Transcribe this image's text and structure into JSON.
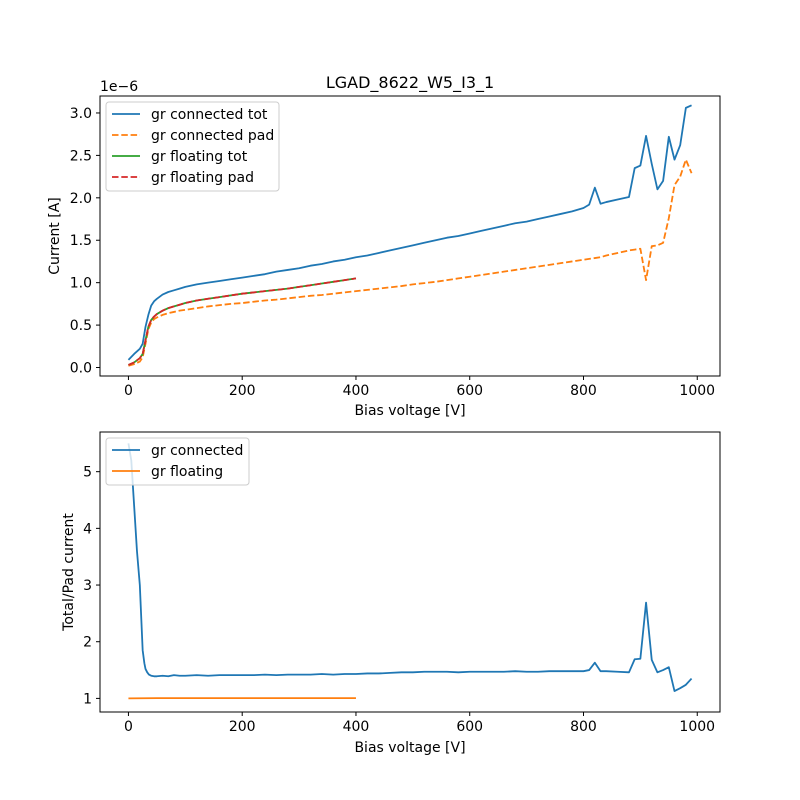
{
  "chart_data": [
    {
      "type": "line",
      "title": "LGAD_8622_W5_I3_1",
      "xlabel": "Bias voltage [V]",
      "ylabel": "Current [A]",
      "y_offset_label": "1e−6",
      "xlim": [
        -50,
        1040
      ],
      "ylim": [
        -1e-07,
        3.2e-06
      ],
      "x_ticks": [
        0,
        200,
        400,
        600,
        800,
        1000
      ],
      "x_tick_labels": [
        "0",
        "200",
        "400",
        "600",
        "800",
        "1000"
      ],
      "y_ticks": [
        0,
        5e-07,
        1e-06,
        1.5e-06,
        2e-06,
        2.5e-06,
        3e-06
      ],
      "y_tick_labels": [
        "0.0",
        "0.5",
        "1.0",
        "1.5",
        "2.0",
        "2.5",
        "3.0"
      ],
      "grid": false,
      "legend_position": "top-left",
      "series": [
        {
          "name": "gr connected tot",
          "color": "#1f77b4",
          "dash": "solid",
          "x": [
            0,
            10,
            20,
            25,
            30,
            35,
            40,
            45,
            50,
            60,
            70,
            80,
            90,
            100,
            120,
            140,
            160,
            180,
            200,
            220,
            240,
            260,
            280,
            300,
            320,
            340,
            360,
            380,
            400,
            420,
            440,
            460,
            480,
            500,
            520,
            540,
            560,
            580,
            600,
            620,
            640,
            660,
            680,
            700,
            720,
            740,
            760,
            780,
            800,
            810,
            820,
            830,
            840,
            860,
            880,
            890,
            900,
            910,
            920,
            930,
            940,
            950,
            960,
            970,
            980,
            990
          ],
          "y": [
            9e-08,
            1.6e-07,
            2.2e-07,
            2.8e-07,
            4.8e-07,
            6.2e-07,
            7.3e-07,
            7.8e-07,
            8.1e-07,
            8.6e-07,
            8.9e-07,
            9.1e-07,
            9.3e-07,
            9.5e-07,
            9.8e-07,
            1e-06,
            1.02e-06,
            1.04e-06,
            1.06e-06,
            1.08e-06,
            1.1e-06,
            1.13e-06,
            1.15e-06,
            1.17e-06,
            1.2e-06,
            1.22e-06,
            1.25e-06,
            1.27e-06,
            1.3e-06,
            1.32e-06,
            1.35e-06,
            1.38e-06,
            1.41e-06,
            1.44e-06,
            1.47e-06,
            1.5e-06,
            1.53e-06,
            1.55e-06,
            1.58e-06,
            1.61e-06,
            1.64e-06,
            1.67e-06,
            1.7e-06,
            1.72e-06,
            1.75e-06,
            1.78e-06,
            1.81e-06,
            1.84e-06,
            1.88e-06,
            1.92e-06,
            2.12e-06,
            1.93e-06,
            1.95e-06,
            1.98e-06,
            2.01e-06,
            2.35e-06,
            2.38e-06,
            2.73e-06,
            2.4e-06,
            2.1e-06,
            2.2e-06,
            2.72e-06,
            2.45e-06,
            2.62e-06,
            3.06e-06,
            3.09e-06
          ]
        },
        {
          "name": "gr connected pad",
          "color": "#ff7f0e",
          "dash": "dashed",
          "x": [
            0,
            10,
            20,
            25,
            30,
            35,
            40,
            45,
            50,
            60,
            70,
            80,
            90,
            100,
            120,
            140,
            160,
            180,
            200,
            220,
            240,
            260,
            280,
            300,
            320,
            340,
            360,
            380,
            400,
            420,
            440,
            460,
            480,
            500,
            520,
            540,
            560,
            580,
            600,
            620,
            640,
            660,
            680,
            700,
            720,
            740,
            760,
            780,
            800,
            810,
            820,
            830,
            840,
            860,
            880,
            890,
            900,
            910,
            920,
            930,
            940,
            950,
            960,
            970,
            980,
            990
          ],
          "y": [
            2e-08,
            4e-08,
            7e-08,
            1.2e-07,
            2.8e-07,
            4.5e-07,
            5.3e-07,
            5.7e-07,
            5.9e-07,
            6.2e-07,
            6.4e-07,
            6.55e-07,
            6.7e-07,
            6.8e-07,
            7e-07,
            7.2e-07,
            7.35e-07,
            7.5e-07,
            7.6e-07,
            7.75e-07,
            7.9e-07,
            8e-07,
            8.15e-07,
            8.3e-07,
            8.45e-07,
            8.55e-07,
            8.7e-07,
            8.85e-07,
            9e-07,
            9.15e-07,
            9.3e-07,
            9.45e-07,
            9.6e-07,
            9.8e-07,
            9.95e-07,
            1.01e-06,
            1.03e-06,
            1.05e-06,
            1.07e-06,
            1.09e-06,
            1.11e-06,
            1.13e-06,
            1.15e-06,
            1.17e-06,
            1.19e-06,
            1.21e-06,
            1.23e-06,
            1.25e-06,
            1.27e-06,
            1.28e-06,
            1.29e-06,
            1.3e-06,
            1.32e-06,
            1.35e-06,
            1.38e-06,
            1.39e-06,
            1.4e-06,
            1.03e-06,
            1.43e-06,
            1.44e-06,
            1.47e-06,
            1.76e-06,
            2.15e-06,
            2.25e-06,
            2.45e-06,
            2.29e-06
          ]
        },
        {
          "name": "gr floating tot",
          "color": "#2ca02c",
          "dash": "solid",
          "x": [
            0,
            10,
            20,
            25,
            30,
            35,
            40,
            45,
            50,
            60,
            70,
            80,
            90,
            100,
            120,
            140,
            160,
            180,
            200,
            220,
            240,
            260,
            280,
            300,
            320,
            340,
            360,
            380,
            400
          ],
          "y": [
            3e-08,
            6e-08,
            1.1e-07,
            1.6e-07,
            3.2e-07,
            4.8e-07,
            5.6e-07,
            6e-07,
            6.3e-07,
            6.7e-07,
            7e-07,
            7.2e-07,
            7.4e-07,
            7.6e-07,
            7.9e-07,
            8.1e-07,
            8.3e-07,
            8.5e-07,
            8.7e-07,
            8.85e-07,
            9e-07,
            9.15e-07,
            9.3e-07,
            9.5e-07,
            9.7e-07,
            9.9e-07,
            1.01e-06,
            1.03e-06,
            1.05e-06
          ]
        },
        {
          "name": "gr floating pad",
          "color": "#d62728",
          "dash": "dashed",
          "x": [
            0,
            10,
            20,
            25,
            30,
            35,
            40,
            45,
            50,
            60,
            70,
            80,
            90,
            100,
            120,
            140,
            160,
            180,
            200,
            220,
            240,
            260,
            280,
            300,
            320,
            340,
            360,
            380,
            400
          ],
          "y": [
            3e-08,
            6e-08,
            1.1e-07,
            1.6e-07,
            3.2e-07,
            4.8e-07,
            5.6e-07,
            6e-07,
            6.3e-07,
            6.7e-07,
            7e-07,
            7.2e-07,
            7.4e-07,
            7.6e-07,
            7.9e-07,
            8.1e-07,
            8.3e-07,
            8.5e-07,
            8.7e-07,
            8.85e-07,
            9e-07,
            9.15e-07,
            9.3e-07,
            9.5e-07,
            9.7e-07,
            9.9e-07,
            1.01e-06,
            1.03e-06,
            1.05e-06
          ]
        }
      ]
    },
    {
      "type": "line",
      "title": "",
      "xlabel": "Bias voltage [V]",
      "ylabel": "Total/Pad current",
      "xlim": [
        -50,
        1040
      ],
      "ylim": [
        0.76,
        5.7
      ],
      "x_ticks": [
        0,
        200,
        400,
        600,
        800,
        1000
      ],
      "x_tick_labels": [
        "0",
        "200",
        "400",
        "600",
        "800",
        "1000"
      ],
      "y_ticks": [
        1,
        2,
        3,
        4,
        5
      ],
      "y_tick_labels": [
        "1",
        "2",
        "3",
        "4",
        "5"
      ],
      "grid": false,
      "legend_position": "top-left",
      "series": [
        {
          "name": "gr connected",
          "color": "#1f77b4",
          "dash": "solid",
          "x": [
            0,
            5,
            10,
            15,
            20,
            25,
            28,
            30,
            33,
            36,
            40,
            45,
            50,
            60,
            70,
            80,
            90,
            100,
            120,
            140,
            160,
            180,
            200,
            220,
            240,
            260,
            280,
            300,
            320,
            340,
            360,
            380,
            400,
            420,
            440,
            460,
            480,
            500,
            520,
            540,
            560,
            580,
            600,
            620,
            640,
            660,
            680,
            700,
            720,
            740,
            760,
            780,
            800,
            810,
            820,
            830,
            840,
            860,
            880,
            890,
            900,
            910,
            920,
            930,
            940,
            950,
            960,
            970,
            980,
            990
          ],
          "y": [
            5.5,
            5.2,
            4.4,
            3.6,
            3.0,
            1.85,
            1.62,
            1.52,
            1.46,
            1.42,
            1.4,
            1.39,
            1.39,
            1.4,
            1.39,
            1.41,
            1.4,
            1.4,
            1.41,
            1.4,
            1.41,
            1.41,
            1.41,
            1.41,
            1.42,
            1.41,
            1.42,
            1.42,
            1.42,
            1.43,
            1.42,
            1.43,
            1.43,
            1.44,
            1.44,
            1.45,
            1.46,
            1.46,
            1.47,
            1.47,
            1.47,
            1.46,
            1.47,
            1.47,
            1.47,
            1.47,
            1.48,
            1.47,
            1.47,
            1.48,
            1.48,
            1.48,
            1.48,
            1.5,
            1.63,
            1.48,
            1.48,
            1.47,
            1.46,
            1.69,
            1.7,
            2.69,
            1.68,
            1.46,
            1.5,
            1.55,
            1.13,
            1.18,
            1.24,
            1.35
          ]
        },
        {
          "name": "gr floating",
          "color": "#ff7f0e",
          "dash": "solid",
          "x": [
            0,
            50,
            100,
            150,
            200,
            250,
            300,
            350,
            400
          ],
          "y": [
            1.0,
            1.005,
            1.005,
            1.005,
            1.005,
            1.005,
            1.005,
            1.005,
            1.005
          ]
        }
      ]
    }
  ]
}
